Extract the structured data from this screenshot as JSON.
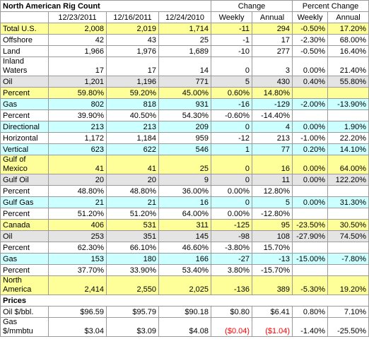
{
  "title": "North American Rig Count",
  "header": {
    "dates": [
      "12/23/2011",
      "12/16/2011",
      "12/24/2010"
    ],
    "change_group": "Change",
    "pct_group": "Percent Change",
    "sub": [
      "Weekly",
      "Annual",
      "Weekly",
      "Annual"
    ]
  },
  "rows": [
    {
      "label": "Total U.S.",
      "bg": "yellow",
      "values": [
        "2,008",
        "2,019",
        "1,714",
        "-11",
        "294",
        "-0.50%",
        "17.20%"
      ]
    },
    {
      "label": "Offshore",
      "bg": "white",
      "values": [
        "42",
        "43",
        "25",
        "-1",
        "17",
        "-2.30%",
        "68.00%"
      ]
    },
    {
      "label": "Land",
      "bg": "white",
      "values": [
        "1,966",
        "1,976",
        "1,689",
        "-10",
        "277",
        "-0.50%",
        "16.40%"
      ]
    },
    {
      "label": "Inland Waters",
      "bg": "white",
      "tall": true,
      "values": [
        "17",
        "17",
        "14",
        "0",
        "3",
        "0.00%",
        "21.40%"
      ]
    },
    {
      "label": "Oil",
      "bg": "gray",
      "values": [
        "1,201",
        "1,196",
        "771",
        "5",
        "430",
        "0.40%",
        "55.80%"
      ]
    },
    {
      "label": "Percent",
      "bg": "yellow",
      "values": [
        "59.80%",
        "59.20%",
        "45.00%",
        "0.60%",
        "14.80%",
        "",
        ""
      ]
    },
    {
      "label": "Gas",
      "bg": "cyan",
      "values": [
        "802",
        "818",
        "931",
        "-16",
        "-129",
        "-2.00%",
        "-13.90%"
      ]
    },
    {
      "label": "Percent",
      "bg": "white",
      "values": [
        "39.90%",
        "40.50%",
        "54.30%",
        "-0.60%",
        "-14.40%",
        "",
        ""
      ]
    },
    {
      "label": "Directional",
      "bg": "cyan",
      "values": [
        "213",
        "213",
        "209",
        "0",
        "4",
        "0.00%",
        "1.90%"
      ]
    },
    {
      "label": "Horizontal",
      "bg": "white",
      "values": [
        "1,172",
        "1,184",
        "959",
        "-12",
        "213",
        "-1.00%",
        "22.20%"
      ]
    },
    {
      "label": "Vertical",
      "bg": "cyan",
      "values": [
        "623",
        "622",
        "546",
        "1",
        "77",
        "0.20%",
        "14.10%"
      ]
    },
    {
      "label": "Gulf of Mexico",
      "bg": "yellow",
      "tall": true,
      "values": [
        "41",
        "41",
        "25",
        "0",
        "16",
        "0.00%",
        "64.00%"
      ]
    },
    {
      "label": "Gulf Oil",
      "bg": "gray",
      "values": [
        "20",
        "20",
        "9",
        "0",
        "11",
        "0.00%",
        "122.20%"
      ]
    },
    {
      "label": "Percent",
      "bg": "white",
      "values": [
        "48.80%",
        "48.80%",
        "36.00%",
        "0.00%",
        "12.80%",
        "",
        ""
      ]
    },
    {
      "label": "Gulf Gas",
      "bg": "cyan",
      "values": [
        "21",
        "21",
        "16",
        "0",
        "5",
        "0.00%",
        "31.30%"
      ]
    },
    {
      "label": "Percent",
      "bg": "white",
      "values": [
        "51.20%",
        "51.20%",
        "64.00%",
        "0.00%",
        "-12.80%",
        "",
        ""
      ]
    },
    {
      "label": "Canada",
      "bg": "yellow",
      "values": [
        "406",
        "531",
        "311",
        "-125",
        "95",
        "-23.50%",
        "30.50%"
      ]
    },
    {
      "label": "Oil",
      "bg": "gray",
      "values": [
        "253",
        "351",
        "145",
        "-98",
        "108",
        "-27.90%",
        "74.50%"
      ]
    },
    {
      "label": "Percent",
      "bg": "white",
      "values": [
        "62.30%",
        "66.10%",
        "46.60%",
        "-3.80%",
        "15.70%",
        "",
        ""
      ]
    },
    {
      "label": "Gas",
      "bg": "cyan",
      "values": [
        "153",
        "180",
        "166",
        "-27",
        "-13",
        "-15.00%",
        "-7.80%"
      ]
    },
    {
      "label": "Percent",
      "bg": "white",
      "values": [
        "37.70%",
        "33.90%",
        "53.40%",
        "3.80%",
        "-15.70%",
        "",
        ""
      ]
    },
    {
      "label": "North America",
      "bg": "yellow",
      "tall": true,
      "values": [
        "2,414",
        "2,550",
        "2,025",
        "-136",
        "389",
        "-5.30%",
        "19.20%"
      ]
    }
  ],
  "prices_title": "Prices",
  "prices": [
    {
      "label": "Oil $/bbl.",
      "bg": "white",
      "values": [
        "$96.59",
        "$95.79",
        "$90.18",
        "$0.80",
        "$6.41",
        "0.80%",
        "7.10%"
      ],
      "red": []
    },
    {
      "label": "Gas $/mmbtu",
      "bg": "white",
      "tall": true,
      "values": [
        "$3.04",
        "$3.09",
        "$4.08",
        "($0.04)",
        "($1.04)",
        "-1.40%",
        "-25.50%"
      ],
      "red": [
        3,
        4
      ]
    }
  ]
}
